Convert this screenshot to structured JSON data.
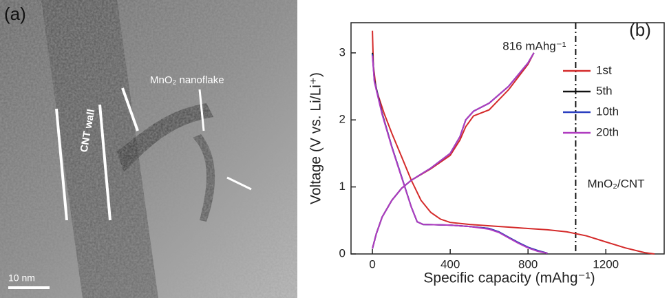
{
  "panel_a": {
    "label": "(a)",
    "flake_label": "MnO₂ nanoflake",
    "wall_label": "CNT wall",
    "scale_bar": "10 nm"
  },
  "chart_data": {
    "type": "line",
    "label": "(b)",
    "annotation": "816 mAhg⁻¹",
    "sample_label": "MnO₂/CNT",
    "x_label": "Specific capacity (mAhg⁻¹)",
    "y_label": "Voltage (V vs. Li/Li⁺)",
    "xlim": [
      -110,
      1500
    ],
    "ylim": [
      0,
      3.45
    ],
    "xticks": [
      0,
      400,
      800,
      1200
    ],
    "yticks": [
      0,
      1,
      2,
      3
    ],
    "vline": 1045,
    "series": [
      {
        "name": "1st",
        "color": "#d42a2a",
        "x": [
          0,
          5,
          20,
          60,
          100,
          150,
          200,
          250,
          300,
          350,
          400,
          500,
          600,
          700,
          800,
          900,
          1000,
          1100,
          1200,
          1300,
          1400,
          1450,
          null,
          0,
          20,
          50,
          100,
          150,
          200,
          300,
          400,
          450,
          480,
          520,
          600,
          700,
          800,
          830
        ],
        "values": [
          3.33,
          2.8,
          2.45,
          2.1,
          1.8,
          1.45,
          1.1,
          0.8,
          0.62,
          0.52,
          0.47,
          0.44,
          0.42,
          0.4,
          0.38,
          0.36,
          0.33,
          0.27,
          0.18,
          0.09,
          0.02,
          0,
          null,
          0.08,
          0.3,
          0.55,
          0.8,
          0.98,
          1.1,
          1.27,
          1.47,
          1.7,
          1.9,
          2.06,
          2.15,
          2.45,
          2.83,
          3.0
        ]
      },
      {
        "name": "5th",
        "color": "#111111",
        "x": [
          0,
          10,
          50,
          100,
          150,
          200,
          230,
          260,
          400,
          500,
          600,
          650,
          700,
          750,
          800,
          850,
          900,
          null,
          0,
          20,
          50,
          100,
          150,
          200,
          300,
          400,
          450,
          480,
          520,
          600,
          700,
          800,
          830
        ],
        "values": [
          3.0,
          2.6,
          2.1,
          1.6,
          1.15,
          0.7,
          0.48,
          0.44,
          0.43,
          0.41,
          0.38,
          0.33,
          0.25,
          0.17,
          0.1,
          0.05,
          0.01,
          null,
          0.08,
          0.3,
          0.55,
          0.8,
          0.98,
          1.1,
          1.28,
          1.5,
          1.75,
          2.0,
          2.13,
          2.25,
          2.5,
          2.85,
          3.0
        ]
      },
      {
        "name": "10th",
        "color": "#2a3fc0",
        "x": [
          0,
          10,
          50,
          100,
          150,
          200,
          230,
          260,
          400,
          500,
          600,
          650,
          700,
          750,
          800,
          850,
          900,
          null,
          0,
          20,
          50,
          100,
          150,
          200,
          300,
          400,
          450,
          480,
          520,
          600,
          700,
          800,
          830
        ],
        "values": [
          2.98,
          2.58,
          2.09,
          1.6,
          1.15,
          0.7,
          0.48,
          0.44,
          0.43,
          0.41,
          0.38,
          0.33,
          0.25,
          0.17,
          0.1,
          0.05,
          0.01,
          null,
          0.08,
          0.3,
          0.55,
          0.8,
          0.98,
          1.1,
          1.28,
          1.5,
          1.75,
          2.0,
          2.13,
          2.25,
          2.5,
          2.85,
          3.0
        ]
      },
      {
        "name": "20th",
        "color": "#b03cc0",
        "x": [
          0,
          10,
          50,
          100,
          150,
          200,
          230,
          260,
          400,
          500,
          600,
          650,
          700,
          750,
          800,
          850,
          900,
          null,
          0,
          20,
          50,
          100,
          150,
          200,
          300,
          400,
          450,
          480,
          520,
          600,
          700,
          800,
          830
        ],
        "values": [
          2.96,
          2.57,
          2.08,
          1.59,
          1.14,
          0.7,
          0.48,
          0.44,
          0.43,
          0.41,
          0.37,
          0.32,
          0.24,
          0.16,
          0.09,
          0.04,
          0.01,
          null,
          0.08,
          0.3,
          0.55,
          0.8,
          0.98,
          1.1,
          1.28,
          1.5,
          1.75,
          2.0,
          2.13,
          2.25,
          2.5,
          2.85,
          3.0
        ]
      }
    ]
  }
}
